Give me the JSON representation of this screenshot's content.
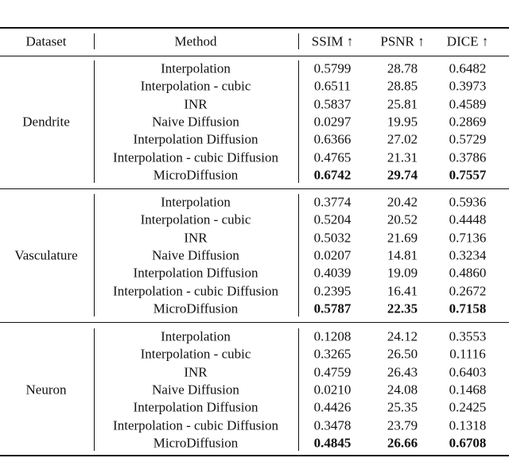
{
  "table": {
    "header": [
      "Dataset",
      "Method",
      "SSIM ↑",
      "PSNR ↑",
      "DICE ↑"
    ],
    "groups": [
      {
        "dataset": "Dendrite",
        "rows": [
          [
            "Interpolation",
            "0.5799",
            "28.78",
            "0.6482"
          ],
          [
            "Interpolation - cubic",
            "0.6511",
            "28.85",
            "0.3973"
          ],
          [
            "INR",
            "0.5837",
            "25.81",
            "0.4589"
          ],
          [
            "Naive Diffusion",
            "0.0297",
            "19.95",
            "0.2869"
          ],
          [
            "Interpolation Diffusion",
            "0.6366",
            "27.02",
            "0.5729"
          ],
          [
            "Interpolation - cubic Diffusion",
            "0.4765",
            "21.31",
            "0.3786"
          ],
          [
            "MicroDiffusion",
            "0.6742",
            "29.74",
            "0.7557"
          ]
        ]
      },
      {
        "dataset": "Vasculature",
        "rows": [
          [
            "Interpolation",
            "0.3774",
            "20.42",
            "0.5936"
          ],
          [
            "Interpolation - cubic",
            "0.5204",
            "20.52",
            "0.4448"
          ],
          [
            "INR",
            "0.5032",
            "21.69",
            "0.7136"
          ],
          [
            "Naive Diffusion",
            "0.0207",
            "14.81",
            "0.3234"
          ],
          [
            "Interpolation Diffusion",
            "0.4039",
            "19.09",
            "0.4860"
          ],
          [
            "Interpolation - cubic Diffusion",
            "0.2395",
            "16.41",
            "0.2672"
          ],
          [
            "MicroDiffusion",
            "0.5787",
            "22.35",
            "0.7158"
          ]
        ]
      },
      {
        "dataset": "Neuron",
        "rows": [
          [
            "Interpolation",
            "0.1208",
            "24.12",
            "0.3553"
          ],
          [
            "Interpolation - cubic",
            "0.3265",
            "26.50",
            "0.1116"
          ],
          [
            "INR",
            "0.4759",
            "26.43",
            "0.6403"
          ],
          [
            "Naive Diffusion",
            "0.0210",
            "24.08",
            "0.1468"
          ],
          [
            "Interpolation Diffusion",
            "0.4426",
            "25.35",
            "0.2425"
          ],
          [
            "Interpolation - cubic Diffusion",
            "0.3478",
            "23.79",
            "0.1318"
          ],
          [
            "MicroDiffusion",
            "0.4845",
            "26.66",
            "0.6708"
          ]
        ]
      }
    ]
  }
}
